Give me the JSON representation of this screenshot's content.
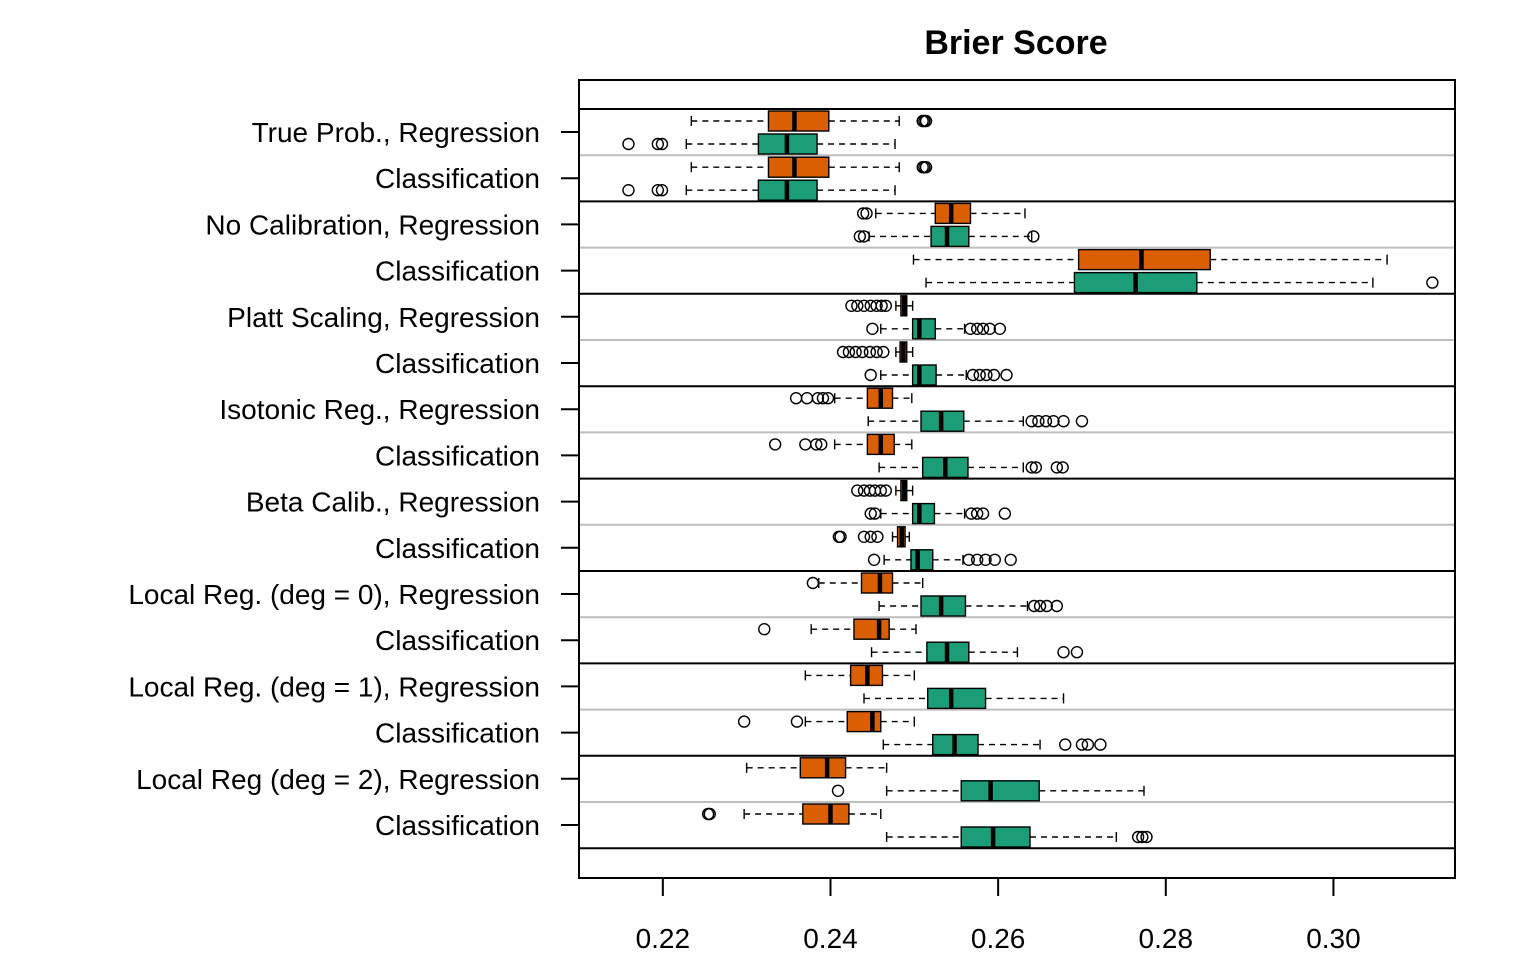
{
  "chart_data": {
    "type": "boxplot",
    "title": "Brier Score",
    "xlabel": "",
    "ylabel": "",
    "xlim": [
      0.21,
      0.3145
    ],
    "x_ticks": [
      "0.22",
      "0.24",
      "0.26",
      "0.28",
      "0.30"
    ],
    "x_tick_values": [
      0.22,
      0.24,
      0.26,
      0.28,
      0.3
    ],
    "grid": false,
    "colors": {
      "first_box": "#D95F02",
      "second_box": "#1B9E77",
      "separator": "#BEBEBE"
    },
    "methods": [
      {
        "name": "True Prob.",
        "rows": [
          {
            "label": "True Prob., Regression",
            "boxes": [
              {
                "whisker_low": 0.2234,
                "q1": 0.2326,
                "median": 0.2357,
                "q3": 0.2398,
                "whisker_high": 0.2482,
                "outliers": [
                  0.251,
                  0.2512,
                  0.2514
                ]
              },
              {
                "whisker_low": 0.2228,
                "q1": 0.2314,
                "median": 0.2348,
                "q3": 0.2384,
                "whisker_high": 0.2477,
                "outliers": [
                  0.2159,
                  0.2194,
                  0.2199
                ]
              }
            ]
          },
          {
            "label": "Classification",
            "boxes": [
              {
                "whisker_low": 0.2234,
                "q1": 0.2326,
                "median": 0.2357,
                "q3": 0.2398,
                "whisker_high": 0.2482,
                "outliers": [
                  0.251,
                  0.2512,
                  0.2514
                ]
              },
              {
                "whisker_low": 0.2228,
                "q1": 0.2314,
                "median": 0.2348,
                "q3": 0.2384,
                "whisker_high": 0.2477,
                "outliers": [
                  0.2159,
                  0.2194,
                  0.2199
                ]
              }
            ]
          }
        ]
      },
      {
        "name": "No Calibration",
        "rows": [
          {
            "label": "No Calibration, Regression",
            "boxes": [
              {
                "whisker_low": 0.2454,
                "q1": 0.2525,
                "median": 0.2544,
                "q3": 0.2567,
                "whisker_high": 0.2632,
                "outliers": [
                  0.2439,
                  0.2443
                ]
              },
              {
                "whisker_low": 0.2446,
                "q1": 0.252,
                "median": 0.2539,
                "q3": 0.2565,
                "whisker_high": 0.264,
                "outliers": [
                  0.2435,
                  0.244,
                  0.2642
                ]
              }
            ]
          },
          {
            "label": "Classification",
            "boxes": [
              {
                "whisker_low": 0.2499,
                "q1": 0.2696,
                "median": 0.2771,
                "q3": 0.2853,
                "whisker_high": 0.3064,
                "outliers": []
              },
              {
                "whisker_low": 0.2514,
                "q1": 0.2691,
                "median": 0.2764,
                "q3": 0.2837,
                "whisker_high": 0.3047,
                "outliers": [
                  0.3118
                ]
              }
            ]
          }
        ]
      },
      {
        "name": "Platt Scaling",
        "rows": [
          {
            "label": "Platt Scaling, Regression",
            "boxes": [
              {
                "whisker_low": 0.2478,
                "q1": 0.2484,
                "median": 0.2488,
                "q3": 0.2491,
                "whisker_high": 0.2498,
                "outliers": [
                  0.2425,
                  0.2432,
                  0.244,
                  0.2448,
                  0.2455,
                  0.2461,
                  0.2466
                ]
              },
              {
                "whisker_low": 0.246,
                "q1": 0.2498,
                "median": 0.2506,
                "q3": 0.2525,
                "whisker_high": 0.256,
                "outliers": [
                  0.245,
                  0.2567,
                  0.2575,
                  0.2582,
                  0.259,
                  0.2602
                ]
              }
            ]
          },
          {
            "label": "Classification",
            "boxes": [
              {
                "whisker_low": 0.2478,
                "q1": 0.2483,
                "median": 0.2487,
                "q3": 0.2491,
                "whisker_high": 0.2498,
                "outliers": [
                  0.2415,
                  0.2422,
                  0.243,
                  0.2438,
                  0.2447,
                  0.2455,
                  0.2463
                ]
              },
              {
                "whisker_low": 0.246,
                "q1": 0.2498,
                "median": 0.2506,
                "q3": 0.2526,
                "whisker_high": 0.2562,
                "outliers": [
                  0.2448,
                  0.257,
                  0.2578,
                  0.2586,
                  0.2595,
                  0.261
                ]
              }
            ]
          }
        ]
      },
      {
        "name": "Isotonic Reg.",
        "rows": [
          {
            "label": "Isotonic Reg., Regression",
            "boxes": [
              {
                "whisker_low": 0.2405,
                "q1": 0.2444,
                "median": 0.246,
                "q3": 0.2474,
                "whisker_high": 0.2497,
                "outliers": [
                  0.2359,
                  0.2372,
                  0.2385,
                  0.2391,
                  0.2397
                ]
              },
              {
                "whisker_low": 0.2445,
                "q1": 0.2508,
                "median": 0.2532,
                "q3": 0.2559,
                "whisker_high": 0.263,
                "outliers": [
                  0.264,
                  0.2648,
                  0.2657,
                  0.2666,
                  0.2678,
                  0.27
                ]
              }
            ]
          },
          {
            "label": "Classification",
            "boxes": [
              {
                "whisker_low": 0.2405,
                "q1": 0.2444,
                "median": 0.246,
                "q3": 0.2476,
                "whisker_high": 0.2497,
                "outliers": [
                  0.2334,
                  0.237,
                  0.2383,
                  0.2389
                ]
              },
              {
                "whisker_low": 0.2458,
                "q1": 0.251,
                "median": 0.2537,
                "q3": 0.2564,
                "whisker_high": 0.263,
                "outliers": [
                  0.264,
                  0.2645,
                  0.267,
                  0.2677
                ]
              }
            ]
          }
        ]
      },
      {
        "name": "Beta Calib.",
        "rows": [
          {
            "label": "Beta Calib., Regression",
            "boxes": [
              {
                "whisker_low": 0.2478,
                "q1": 0.2484,
                "median": 0.2488,
                "q3": 0.2491,
                "whisker_high": 0.2498,
                "outliers": [
                  0.2432,
                  0.244,
                  0.2447,
                  0.2453,
                  0.246,
                  0.2466
                ]
              },
              {
                "whisker_low": 0.246,
                "q1": 0.2498,
                "median": 0.2506,
                "q3": 0.2524,
                "whisker_high": 0.256,
                "outliers": [
                  0.2448,
                  0.2453,
                  0.2568,
                  0.2575,
                  0.2582,
                  0.2608
                ]
              }
            ]
          },
          {
            "label": "Classification",
            "boxes": [
              {
                "whisker_low": 0.2474,
                "q1": 0.248,
                "median": 0.2485,
                "q3": 0.2489,
                "whisker_high": 0.2494,
                "outliers": [
                  0.241,
                  0.2412,
                  0.244,
                  0.2448,
                  0.2456
                ]
              },
              {
                "whisker_low": 0.2464,
                "q1": 0.2496,
                "median": 0.2504,
                "q3": 0.2522,
                "whisker_high": 0.2558,
                "outliers": [
                  0.2452,
                  0.2565,
                  0.2575,
                  0.2585,
                  0.2596,
                  0.2615
                ]
              }
            ]
          }
        ]
      },
      {
        "name": "Local Reg. (deg = 0)",
        "rows": [
          {
            "label": "Local Reg. (deg = 0), Regression",
            "boxes": [
              {
                "whisker_low": 0.2386,
                "q1": 0.2437,
                "median": 0.2459,
                "q3": 0.2474,
                "whisker_high": 0.251,
                "outliers": [
                  0.2379
                ]
              },
              {
                "whisker_low": 0.2458,
                "q1": 0.2508,
                "median": 0.2532,
                "q3": 0.2561,
                "whisker_high": 0.2635,
                "outliers": [
                  0.2643,
                  0.265,
                  0.2658,
                  0.267
                ]
              }
            ]
          },
          {
            "label": "Classification",
            "boxes": [
              {
                "whisker_low": 0.2377,
                "q1": 0.2428,
                "median": 0.2458,
                "q3": 0.247,
                "whisker_high": 0.2502,
                "outliers": [
                  0.2321
                ]
              },
              {
                "whisker_low": 0.2449,
                "q1": 0.2515,
                "median": 0.2539,
                "q3": 0.2565,
                "whisker_high": 0.2623,
                "outliers": [
                  0.2678,
                  0.2694
                ]
              }
            ]
          }
        ]
      },
      {
        "name": "Local Reg. (deg = 1)",
        "rows": [
          {
            "label": "Local Reg. (deg = 1), Regression",
            "boxes": [
              {
                "whisker_low": 0.237,
                "q1": 0.2424,
                "median": 0.2444,
                "q3": 0.2462,
                "whisker_high": 0.25,
                "outliers": []
              },
              {
                "whisker_low": 0.244,
                "q1": 0.2516,
                "median": 0.2544,
                "q3": 0.2585,
                "whisker_high": 0.2678,
                "outliers": []
              }
            ]
          },
          {
            "label": "Classification",
            "boxes": [
              {
                "whisker_low": 0.237,
                "q1": 0.242,
                "median": 0.245,
                "q3": 0.246,
                "whisker_high": 0.25,
                "outliers": [
                  0.2297,
                  0.236
                ]
              },
              {
                "whisker_low": 0.2463,
                "q1": 0.2522,
                "median": 0.2548,
                "q3": 0.2576,
                "whisker_high": 0.265,
                "outliers": [
                  0.268,
                  0.27,
                  0.2707,
                  0.2722
                ]
              }
            ]
          }
        ]
      },
      {
        "name": "Local Reg (deg = 2)",
        "rows": [
          {
            "label": "Local Reg (deg = 2), Regression",
            "boxes": [
              {
                "whisker_low": 0.23,
                "q1": 0.2364,
                "median": 0.2396,
                "q3": 0.2418,
                "whisker_high": 0.2467,
                "outliers": []
              },
              {
                "whisker_low": 0.2467,
                "q1": 0.2556,
                "median": 0.2591,
                "q3": 0.2649,
                "whisker_high": 0.2774,
                "outliers": [
                  0.2409
                ]
              }
            ]
          },
          {
            "label": "Classification",
            "boxes": [
              {
                "whisker_low": 0.2297,
                "q1": 0.2367,
                "median": 0.24,
                "q3": 0.2422,
                "whisker_high": 0.246,
                "outliers": [
                  0.2254,
                  0.2256
                ]
              },
              {
                "whisker_low": 0.2467,
                "q1": 0.2556,
                "median": 0.2594,
                "q3": 0.2638,
                "whisker_high": 0.2741,
                "outliers": [
                  0.2767,
                  0.2772,
                  0.2777
                ]
              }
            ]
          }
        ]
      }
    ]
  }
}
